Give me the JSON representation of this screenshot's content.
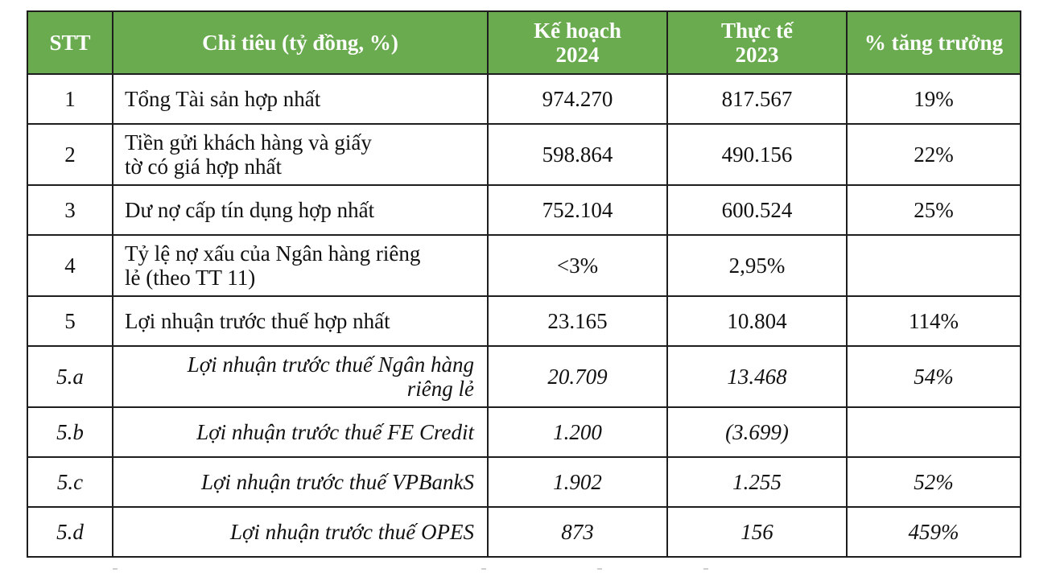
{
  "table": {
    "headers": {
      "stt": "STT",
      "indicator": "Chỉ tiêu (tỷ đồng, %)",
      "plan": [
        "Kế hoạch",
        "2024"
      ],
      "actual": [
        "Thực tế",
        "2023"
      ],
      "growth": "% tăng trưởng"
    },
    "rows": [
      {
        "stt": "1",
        "name": [
          "Tổng Tài sản hợp nhất"
        ],
        "plan": "974.270",
        "actual": "817.567",
        "growth": "19%"
      },
      {
        "stt": "2",
        "name": [
          "Tiền gửi khách hàng và giấy",
          "tờ có giá hợp nhất"
        ],
        "plan": "598.864",
        "actual": "490.156",
        "growth": "22%"
      },
      {
        "stt": "3",
        "name": [
          "Dư nợ cấp tín dụng hợp nhất"
        ],
        "plan": "752.104",
        "actual": "600.524",
        "growth": "25%"
      },
      {
        "stt": "4",
        "name": [
          "Tỷ lệ nợ xấu của Ngân hàng riêng",
          "lẻ (theo TT 11)"
        ],
        "plan": "<3%",
        "actual": "2,95%",
        "growth": ""
      },
      {
        "stt": "5",
        "name": [
          "Lợi nhuận trước thuế hợp nhất"
        ],
        "plan": "23.165",
        "actual": "10.804",
        "growth": "114%"
      },
      {
        "stt": "5.a",
        "name": [
          "Lợi nhuận trước thuế Ngân hàng",
          "riêng lẻ"
        ],
        "plan": "20.709",
        "actual": "13.468",
        "growth": "54%"
      },
      {
        "stt": "5.b",
        "name": [
          "Lợi nhuận trước thuế FE Credit"
        ],
        "plan": "1.200",
        "actual": "(3.699)",
        "growth": ""
      },
      {
        "stt": "5.c",
        "name": [
          "Lợi nhuận trước thuế VPBankS"
        ],
        "plan": "1.902",
        "actual": "1.255",
        "growth": "52%"
      },
      {
        "stt": "5.d",
        "name": [
          "Lợi nhuận trước thuế OPES"
        ],
        "plan": "873",
        "actual": "156",
        "growth": "459%"
      }
    ]
  },
  "colors": {
    "header_bg": "#6aab4f",
    "header_text": "#ffffff",
    "border": "#1e1e1e"
  }
}
